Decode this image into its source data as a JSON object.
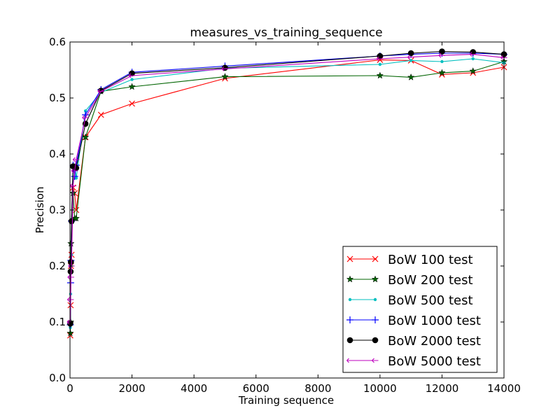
{
  "chart_data": {
    "type": "line",
    "title": "measures_vs_training_sequence",
    "xlabel": "Training sequence",
    "ylabel": "Precision",
    "xlim": [
      0,
      14000
    ],
    "ylim": [
      0.0,
      0.6
    ],
    "xticks": [
      "0",
      "2000",
      "4000",
      "6000",
      "8000",
      "10000",
      "12000",
      "14000"
    ],
    "yticks": [
      "0.0",
      "0.1",
      "0.2",
      "0.3",
      "0.4",
      "0.5",
      "0.6"
    ],
    "grid": false,
    "legend_position": "lower-right",
    "series": [
      {
        "name": "BoW 100 test",
        "color": "#ff0000",
        "marker": "x",
        "points": [
          [
            10,
            0.076
          ],
          [
            20,
            0.13
          ],
          [
            30,
            0.2
          ],
          [
            50,
            0.22
          ],
          [
            100,
            0.34
          ],
          [
            150,
            0.33
          ],
          [
            200,
            0.3
          ],
          [
            500,
            0.43
          ],
          [
            1000,
            0.47
          ],
          [
            2000,
            0.49
          ],
          [
            5000,
            0.535
          ],
          [
            10000,
            0.568
          ],
          [
            11000,
            0.567
          ],
          [
            12000,
            0.542
          ],
          [
            13000,
            0.545
          ],
          [
            14000,
            0.555
          ]
        ]
      },
      {
        "name": "BoW 200 test",
        "color": "#006400",
        "marker": "star",
        "points": [
          [
            10,
            0.08
          ],
          [
            20,
            0.1
          ],
          [
            30,
            0.24
          ],
          [
            50,
            0.28
          ],
          [
            100,
            0.33
          ],
          [
            150,
            0.285
          ],
          [
            200,
            0.285
          ],
          [
            500,
            0.43
          ],
          [
            1000,
            0.512
          ],
          [
            2000,
            0.52
          ],
          [
            5000,
            0.538
          ],
          [
            10000,
            0.54
          ],
          [
            11000,
            0.537
          ],
          [
            12000,
            0.545
          ],
          [
            13000,
            0.548
          ],
          [
            14000,
            0.565
          ]
        ]
      },
      {
        "name": "BoW 500 test",
        "color": "#00bfbf",
        "marker": "dot",
        "points": [
          [
            10,
            0.09
          ],
          [
            20,
            0.15
          ],
          [
            30,
            0.2
          ],
          [
            50,
            0.22
          ],
          [
            100,
            0.37
          ],
          [
            150,
            0.38
          ],
          [
            200,
            0.357
          ],
          [
            500,
            0.477
          ],
          [
            1000,
            0.51
          ],
          [
            2000,
            0.533
          ],
          [
            5000,
            0.553
          ],
          [
            10000,
            0.56
          ],
          [
            11000,
            0.567
          ],
          [
            12000,
            0.565
          ],
          [
            13000,
            0.57
          ],
          [
            14000,
            0.563
          ]
        ]
      },
      {
        "name": "BoW 1000 test",
        "color": "#0000ff",
        "marker": "plus",
        "points": [
          [
            10,
            0.095
          ],
          [
            20,
            0.17
          ],
          [
            30,
            0.21
          ],
          [
            50,
            0.28
          ],
          [
            100,
            0.38
          ],
          [
            150,
            0.36
          ],
          [
            200,
            0.38
          ],
          [
            500,
            0.47
          ],
          [
            1000,
            0.515
          ],
          [
            2000,
            0.546
          ],
          [
            5000,
            0.557
          ],
          [
            10000,
            0.575
          ],
          [
            11000,
            0.578
          ],
          [
            12000,
            0.58
          ],
          [
            13000,
            0.58
          ],
          [
            14000,
            0.578
          ]
        ]
      },
      {
        "name": "BoW 2000 test",
        "color": "#000000",
        "marker": "circle",
        "points": [
          [
            10,
            0.097
          ],
          [
            20,
            0.19
          ],
          [
            30,
            0.207
          ],
          [
            50,
            0.28
          ],
          [
            100,
            0.378
          ],
          [
            150,
            0.377
          ],
          [
            200,
            0.375
          ],
          [
            500,
            0.454
          ],
          [
            1000,
            0.513
          ],
          [
            2000,
            0.544
          ],
          [
            5000,
            0.554
          ],
          [
            10000,
            0.575
          ],
          [
            11000,
            0.58
          ],
          [
            12000,
            0.583
          ],
          [
            13000,
            0.582
          ],
          [
            14000,
            0.578
          ]
        ]
      },
      {
        "name": "BoW 5000 test",
        "color": "#bf00bf",
        "marker": "tri",
        "points": [
          [
            10,
            0.1
          ],
          [
            20,
            0.14
          ],
          [
            30,
            0.18
          ],
          [
            50,
            0.2
          ],
          [
            100,
            0.343
          ],
          [
            150,
            0.37
          ],
          [
            200,
            0.39
          ],
          [
            500,
            0.465
          ],
          [
            1000,
            0.512
          ],
          [
            2000,
            0.54
          ],
          [
            5000,
            0.552
          ],
          [
            10000,
            0.57
          ],
          [
            11000,
            0.573
          ],
          [
            12000,
            0.576
          ],
          [
            13000,
            0.578
          ],
          [
            14000,
            0.572
          ]
        ]
      }
    ]
  }
}
